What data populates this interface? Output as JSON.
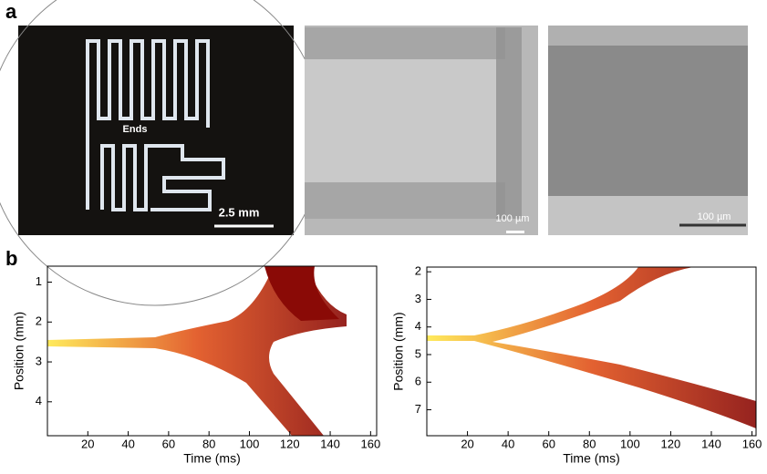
{
  "figure": {
    "panel_labels": [
      "a",
      "b"
    ],
    "annotations": [
      "Ends",
      "2.5 mm",
      "100 µm",
      "100 µm"
    ]
  },
  "chart_data": [
    {
      "type": "heatmap",
      "xlabel": "Time (ms)",
      "ylabel": "Position (mm)",
      "xlim": [
        0,
        163
      ],
      "xticks": [
        20,
        40,
        60,
        80,
        100,
        120,
        140,
        160
      ],
      "ylim": [
        0.6,
        4.85
      ],
      "yticks": [
        1,
        2,
        3,
        4
      ],
      "y_inverted": true
    },
    {
      "type": "heatmap",
      "xlabel": "Time (ms)",
      "ylabel": "Position (mm)",
      "xlim": [
        0,
        162
      ],
      "xticks": [
        20,
        40,
        60,
        80,
        100,
        120,
        140,
        160
      ],
      "ylim": [
        1.83,
        7.94
      ],
      "yticks": [
        2,
        3,
        4,
        5,
        6,
        7
      ],
      "y_inverted": true
    }
  ]
}
